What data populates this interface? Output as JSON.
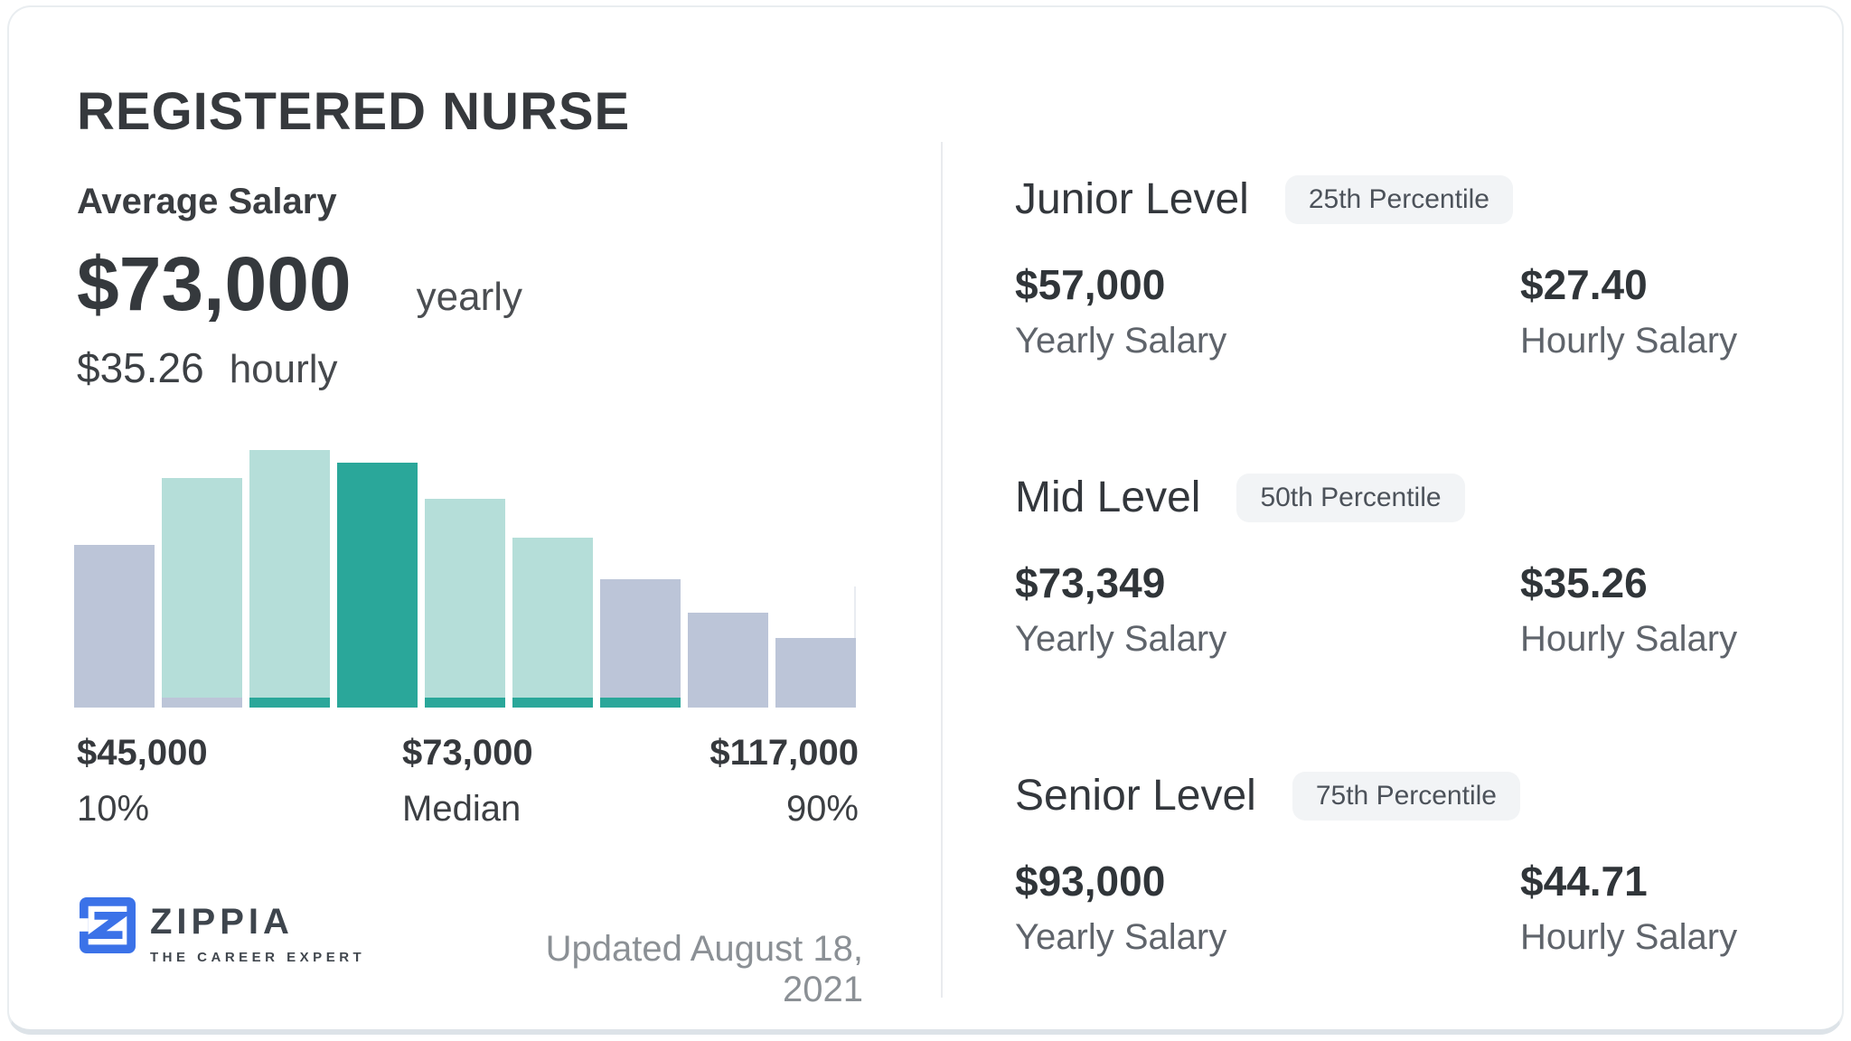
{
  "title": "REGISTERED NURSE",
  "summary": {
    "label": "Average Salary",
    "yearly_value": "$73,000",
    "yearly_unit": "yearly",
    "hourly_value": "$35.26",
    "hourly_unit": "hourly"
  },
  "chart_data": {
    "type": "bar",
    "title": "Registered Nurse salary distribution",
    "values": [
      63,
      89,
      100,
      95,
      81,
      66,
      50,
      37,
      27
    ],
    "y_unit": "relative bar height %",
    "bar_colors": [
      "lavender",
      "teal",
      "teal",
      "accent",
      "teal",
      "teal",
      "lavender",
      "lavender",
      "lavender"
    ],
    "bar_strips": [
      null,
      "lavender",
      "accent",
      null,
      "accent",
      "accent",
      "accent",
      null,
      null
    ],
    "x_ticks": [
      {
        "value": "$45,000",
        "sub": "10%"
      },
      {
        "value": "$73,000",
        "sub": "Median"
      },
      {
        "value": "$117,000",
        "sub": "90%"
      }
    ],
    "grid": false,
    "legend": null
  },
  "levels": [
    {
      "name": "Junior Level",
      "badge": "25th Percentile",
      "yearly_value": "$57,000",
      "yearly_label": "Yearly Salary",
      "hourly_value": "$27.40",
      "hourly_label": "Hourly Salary"
    },
    {
      "name": "Mid Level",
      "badge": "50th Percentile",
      "yearly_value": "$73,349",
      "yearly_label": "Yearly Salary",
      "hourly_value": "$35.26",
      "hourly_label": "Hourly Salary"
    },
    {
      "name": "Senior Level",
      "badge": "75th Percentile",
      "yearly_value": "$93,000",
      "yearly_label": "Yearly Salary",
      "hourly_value": "$44.71",
      "hourly_label": "Hourly Salary"
    }
  ],
  "footer": {
    "logo_text": "ZIPPIA",
    "logo_tagline": "THE CAREER EXPERT",
    "updated": "Updated August 18, 2021"
  },
  "colors": {
    "accent": "#2aa79a",
    "bar_teal": "#b5ded9",
    "bar_lavender": "#bcc5d8",
    "badge_bg": "#f2f4f6",
    "divider": "#e9ebee",
    "logo_blue": "#3b72e8",
    "card_border": "#e9edf0"
  }
}
